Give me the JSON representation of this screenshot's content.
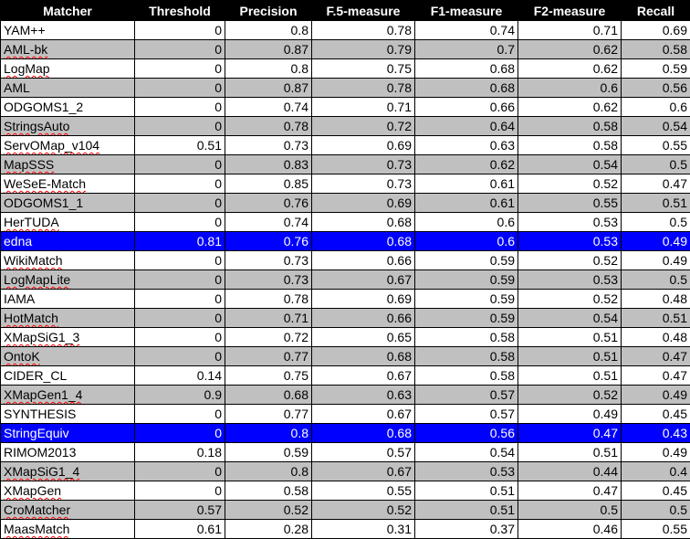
{
  "table": {
    "headers": [
      "Matcher",
      "Threshold",
      "Precision",
      "F.5-measure",
      "F1-measure",
      "F2-measure",
      "Recall"
    ],
    "rows": [
      {
        "matcher": "YAM++",
        "threshold": "0",
        "precision": "0.8",
        "f05": "0.78",
        "f1": "0.74",
        "f2": "0.71",
        "recall": "0.69",
        "style": "white",
        "spell": false
      },
      {
        "matcher": "AML-bk",
        "threshold": "0",
        "precision": "0.87",
        "f05": "0.79",
        "f1": "0.7",
        "f2": "0.62",
        "recall": "0.58",
        "style": "gray",
        "spell": true
      },
      {
        "matcher": "LogMap",
        "threshold": "0",
        "precision": "0.8",
        "f05": "0.75",
        "f1": "0.68",
        "f2": "0.62",
        "recall": "0.59",
        "style": "white",
        "spell": true
      },
      {
        "matcher": "AML",
        "threshold": "0",
        "precision": "0.87",
        "f05": "0.78",
        "f1": "0.68",
        "f2": "0.6",
        "recall": "0.56",
        "style": "gray",
        "spell": false
      },
      {
        "matcher": "ODGOMS1_2",
        "threshold": "0",
        "precision": "0.74",
        "f05": "0.71",
        "f1": "0.66",
        "f2": "0.62",
        "recall": "0.6",
        "style": "white",
        "spell": false
      },
      {
        "matcher": "StringsAuto",
        "threshold": "0",
        "precision": "0.78",
        "f05": "0.72",
        "f1": "0.64",
        "f2": "0.58",
        "recall": "0.54",
        "style": "gray",
        "spell": true
      },
      {
        "matcher": "ServOMap_v104",
        "threshold": "0.51",
        "precision": "0.73",
        "f05": "0.69",
        "f1": "0.63",
        "f2": "0.58",
        "recall": "0.55",
        "style": "white",
        "spell": true
      },
      {
        "matcher": "MapSSS",
        "threshold": "0",
        "precision": "0.83",
        "f05": "0.73",
        "f1": "0.62",
        "f2": "0.54",
        "recall": "0.5",
        "style": "gray",
        "spell": true
      },
      {
        "matcher": "WeSeE-Match",
        "threshold": "0",
        "precision": "0.85",
        "f05": "0.73",
        "f1": "0.61",
        "f2": "0.52",
        "recall": "0.47",
        "style": "white",
        "spell": true
      },
      {
        "matcher": "ODGOMS1_1",
        "threshold": "0",
        "precision": "0.76",
        "f05": "0.69",
        "f1": "0.61",
        "f2": "0.55",
        "recall": "0.51",
        "style": "gray",
        "spell": false
      },
      {
        "matcher": "HerTUDA",
        "threshold": "0",
        "precision": "0.74",
        "f05": "0.68",
        "f1": "0.6",
        "f2": "0.53",
        "recall": "0.5",
        "style": "white",
        "spell": true
      },
      {
        "matcher": "edna",
        "threshold": "0.81",
        "precision": "0.76",
        "f05": "0.68",
        "f1": "0.6",
        "f2": "0.53",
        "recall": "0.49",
        "style": "hl",
        "spell": false
      },
      {
        "matcher": "WikiMatch",
        "threshold": "0",
        "precision": "0.73",
        "f05": "0.66",
        "f1": "0.59",
        "f2": "0.52",
        "recall": "0.49",
        "style": "white",
        "spell": true
      },
      {
        "matcher": "LogMapLite",
        "threshold": "0",
        "precision": "0.73",
        "f05": "0.67",
        "f1": "0.59",
        "f2": "0.53",
        "recall": "0.5",
        "style": "gray",
        "spell": true
      },
      {
        "matcher": "IAMA",
        "threshold": "0",
        "precision": "0.78",
        "f05": "0.69",
        "f1": "0.59",
        "f2": "0.52",
        "recall": "0.48",
        "style": "white",
        "spell": false
      },
      {
        "matcher": "HotMatch",
        "threshold": "0",
        "precision": "0.71",
        "f05": "0.66",
        "f1": "0.59",
        "f2": "0.54",
        "recall": "0.51",
        "style": "gray",
        "spell": true
      },
      {
        "matcher": "XMapSiG1_3",
        "threshold": "0",
        "precision": "0.72",
        "f05": "0.65",
        "f1": "0.58",
        "f2": "0.51",
        "recall": "0.48",
        "style": "white",
        "spell": true
      },
      {
        "matcher": "OntoK",
        "threshold": "0",
        "precision": "0.77",
        "f05": "0.68",
        "f1": "0.58",
        "f2": "0.51",
        "recall": "0.47",
        "style": "gray",
        "spell": true
      },
      {
        "matcher": "CIDER_CL",
        "threshold": "0.14",
        "precision": "0.75",
        "f05": "0.67",
        "f1": "0.58",
        "f2": "0.51",
        "recall": "0.47",
        "style": "white",
        "spell": false
      },
      {
        "matcher": "XMapGen1_4",
        "threshold": "0.9",
        "precision": "0.68",
        "f05": "0.63",
        "f1": "0.57",
        "f2": "0.52",
        "recall": "0.49",
        "style": "gray",
        "spell": true
      },
      {
        "matcher": "SYNTHESIS",
        "threshold": "0",
        "precision": "0.77",
        "f05": "0.67",
        "f1": "0.57",
        "f2": "0.49",
        "recall": "0.45",
        "style": "white",
        "spell": false
      },
      {
        "matcher": "StringEquiv",
        "threshold": "0",
        "precision": "0.8",
        "f05": "0.68",
        "f1": "0.56",
        "f2": "0.47",
        "recall": "0.43",
        "style": "hl",
        "spell": false
      },
      {
        "matcher": "RIMOM2013",
        "threshold": "0.18",
        "precision": "0.59",
        "f05": "0.57",
        "f1": "0.54",
        "f2": "0.51",
        "recall": "0.49",
        "style": "white",
        "spell": false
      },
      {
        "matcher": "XMapSiG1_4",
        "threshold": "0",
        "precision": "0.8",
        "f05": "0.67",
        "f1": "0.53",
        "f2": "0.44",
        "recall": "0.4",
        "style": "gray",
        "spell": true
      },
      {
        "matcher": "XMapGen",
        "threshold": "0",
        "precision": "0.58",
        "f05": "0.55",
        "f1": "0.51",
        "f2": "0.47",
        "recall": "0.45",
        "style": "white",
        "spell": true
      },
      {
        "matcher": "CroMatcher",
        "threshold": "0.57",
        "precision": "0.52",
        "f05": "0.52",
        "f1": "0.51",
        "f2": "0.5",
        "recall": "0.5",
        "style": "gray",
        "spell": true
      },
      {
        "matcher": "MaasMatch",
        "threshold": "0.61",
        "precision": "0.28",
        "f05": "0.31",
        "f1": "0.37",
        "f2": "0.46",
        "recall": "0.55",
        "style": "white",
        "spell": true
      }
    ]
  }
}
